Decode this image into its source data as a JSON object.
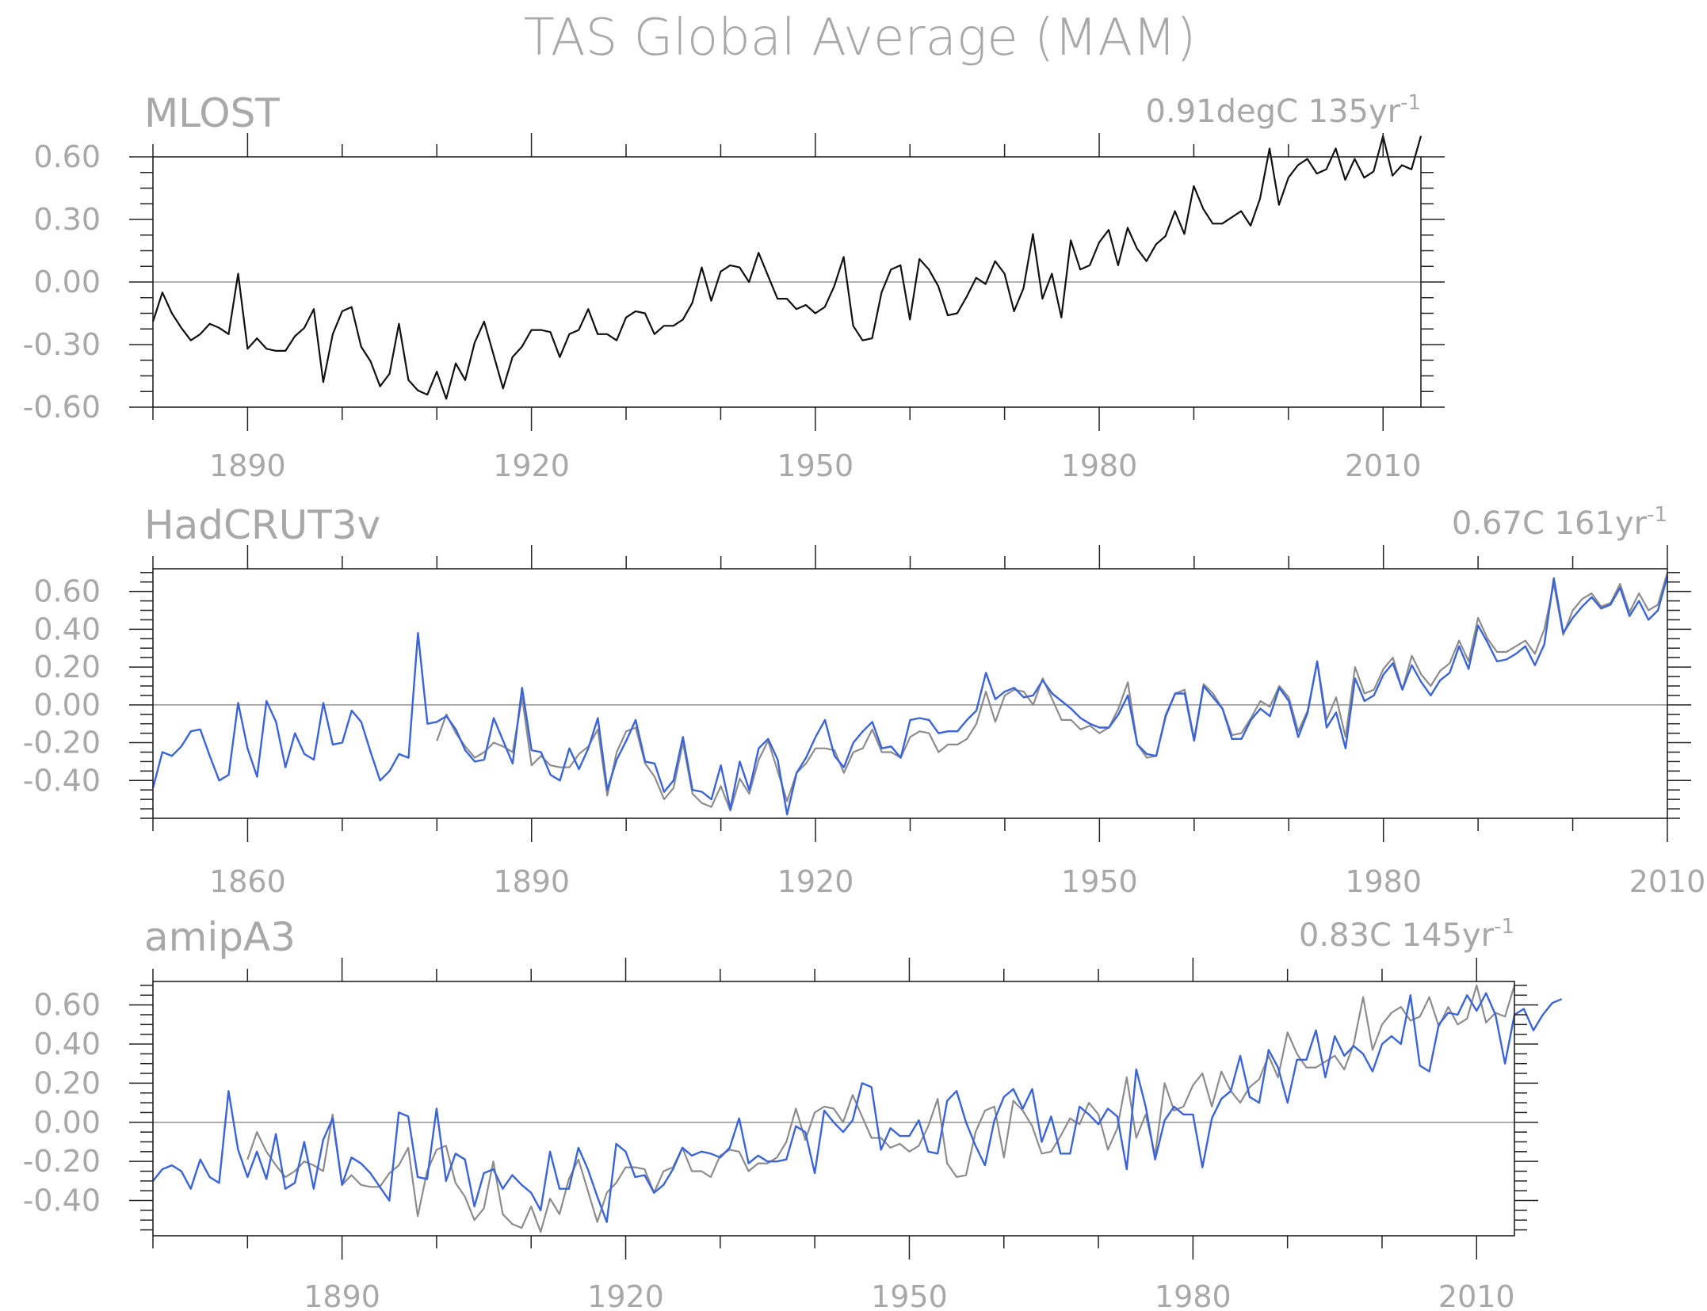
{
  "title": "TAS Global Average (MAM)",
  "colors": {
    "text": "#a8a8a8",
    "axis": "#222222",
    "zero_line": "#9a9a9a",
    "observed": "#111111",
    "reference": "#8c8c8c",
    "model": "#3a64d8"
  },
  "chart_data": [
    {
      "type": "line",
      "name": "MLOST",
      "title": "MLOST",
      "trend_value": "0.91degC",
      "trend_period": "135yr",
      "trend_exponent": "-1",
      "xlim": [
        1880,
        2014
      ],
      "ylim": [
        -0.6,
        0.6
      ],
      "xticks": [
        1890,
        1920,
        1950,
        1980,
        2010
      ],
      "yticks": [
        -0.6,
        -0.3,
        0.0,
        0.3,
        0.6
      ],
      "ytick_labels": [
        "-0.60",
        "-0.30",
        "0.00",
        "0.30",
        "0.60"
      ],
      "series": [
        {
          "role": "observed",
          "start_year": 1880,
          "values": [
            -0.19,
            -0.05,
            -0.15,
            -0.22,
            -0.28,
            -0.25,
            -0.2,
            -0.22,
            -0.25,
            0.04,
            -0.32,
            -0.27,
            -0.32,
            -0.33,
            -0.33,
            -0.26,
            -0.22,
            -0.13,
            -0.48,
            -0.25,
            -0.14,
            -0.12,
            -0.31,
            -0.38,
            -0.5,
            -0.44,
            -0.2,
            -0.47,
            -0.52,
            -0.54,
            -0.43,
            -0.56,
            -0.39,
            -0.47,
            -0.29,
            -0.19,
            -0.35,
            -0.51,
            -0.36,
            -0.31,
            -0.23,
            -0.23,
            -0.24,
            -0.36,
            -0.25,
            -0.23,
            -0.13,
            -0.25,
            -0.25,
            -0.28,
            -0.17,
            -0.14,
            -0.15,
            -0.25,
            -0.21,
            -0.21,
            -0.18,
            -0.1,
            0.07,
            -0.09,
            0.05,
            0.08,
            0.07,
            0.0,
            0.14,
            0.03,
            -0.08,
            -0.08,
            -0.13,
            -0.11,
            -0.15,
            -0.12,
            -0.02,
            0.12,
            -0.21,
            -0.28,
            -0.27,
            -0.05,
            0.06,
            0.08,
            -0.18,
            0.11,
            0.06,
            -0.02,
            -0.16,
            -0.15,
            -0.07,
            0.02,
            -0.01,
            0.1,
            0.04,
            -0.14,
            -0.03,
            0.23,
            -0.08,
            0.04,
            -0.17,
            0.2,
            0.06,
            0.08,
            0.19,
            0.25,
            0.08,
            0.26,
            0.16,
            0.1,
            0.18,
            0.22,
            0.34,
            0.23,
            0.46,
            0.35,
            0.28,
            0.28,
            0.31,
            0.34,
            0.27,
            0.4,
            0.64,
            0.37,
            0.5,
            0.56,
            0.59,
            0.52,
            0.54,
            0.64,
            0.49,
            0.59,
            0.5,
            0.53,
            0.7,
            0.51,
            0.56,
            0.54,
            0.7
          ]
        }
      ]
    },
    {
      "type": "line",
      "name": "HadCRUT3v",
      "title": "HadCRUT3v",
      "trend_value": "0.67C",
      "trend_period": "161yr",
      "trend_exponent": "-1",
      "xlim": [
        1850,
        2010
      ],
      "ylim": [
        -0.6,
        0.72
      ],
      "xticks": [
        1860,
        1890,
        1920,
        1950,
        1980,
        2010
      ],
      "yticks": [
        -0.4,
        -0.2,
        0.0,
        0.2,
        0.4,
        0.6
      ],
      "ytick_labels": [
        "-0.40",
        "-0.20",
        "0.00",
        "0.20",
        "0.40",
        "0.60"
      ],
      "series": [
        {
          "role": "reference",
          "start_year": 1880,
          "values": [
            -0.19,
            -0.05,
            -0.15,
            -0.22,
            -0.28,
            -0.25,
            -0.2,
            -0.22,
            -0.25,
            0.04,
            -0.32,
            -0.27,
            -0.32,
            -0.33,
            -0.33,
            -0.26,
            -0.22,
            -0.13,
            -0.48,
            -0.25,
            -0.14,
            -0.12,
            -0.31,
            -0.38,
            -0.5,
            -0.44,
            -0.2,
            -0.47,
            -0.52,
            -0.54,
            -0.43,
            -0.56,
            -0.39,
            -0.47,
            -0.29,
            -0.19,
            -0.35,
            -0.51,
            -0.36,
            -0.31,
            -0.23,
            -0.23,
            -0.24,
            -0.36,
            -0.25,
            -0.23,
            -0.13,
            -0.25,
            -0.25,
            -0.28,
            -0.17,
            -0.14,
            -0.15,
            -0.25,
            -0.21,
            -0.21,
            -0.18,
            -0.1,
            0.07,
            -0.09,
            0.05,
            0.08,
            0.07,
            0.0,
            0.14,
            0.03,
            -0.08,
            -0.08,
            -0.13,
            -0.11,
            -0.15,
            -0.12,
            -0.02,
            0.12,
            -0.21,
            -0.28,
            -0.27,
            -0.05,
            0.06,
            0.08,
            -0.18,
            0.11,
            0.06,
            -0.02,
            -0.16,
            -0.15,
            -0.07,
            0.02,
            -0.01,
            0.1,
            0.04,
            -0.14,
            -0.03,
            0.23,
            -0.08,
            0.04,
            -0.17,
            0.2,
            0.06,
            0.08,
            0.19,
            0.25,
            0.08,
            0.26,
            0.16,
            0.1,
            0.18,
            0.22,
            0.34,
            0.23,
            0.46,
            0.35,
            0.28,
            0.28,
            0.31,
            0.34,
            0.27,
            0.4,
            0.64,
            0.37,
            0.5,
            0.56,
            0.59,
            0.52,
            0.54,
            0.64,
            0.49,
            0.59,
            0.5,
            0.53,
            0.7
          ]
        },
        {
          "role": "observed-blue",
          "start_year": 1850,
          "values": [
            -0.44,
            -0.25,
            -0.27,
            -0.22,
            -0.14,
            -0.13,
            -0.27,
            -0.4,
            -0.37,
            0.01,
            -0.23,
            -0.38,
            0.02,
            -0.09,
            -0.33,
            -0.15,
            -0.26,
            -0.29,
            0.01,
            -0.21,
            -0.2,
            -0.03,
            -0.09,
            -0.25,
            -0.4,
            -0.35,
            -0.26,
            -0.28,
            0.38,
            -0.1,
            -0.09,
            -0.06,
            -0.13,
            -0.24,
            -0.3,
            -0.29,
            -0.07,
            -0.19,
            -0.31,
            0.09,
            -0.24,
            -0.25,
            -0.37,
            -0.4,
            -0.23,
            -0.34,
            -0.23,
            -0.07,
            -0.45,
            -0.29,
            -0.19,
            -0.08,
            -0.3,
            -0.31,
            -0.46,
            -0.4,
            -0.17,
            -0.45,
            -0.46,
            -0.5,
            -0.32,
            -0.55,
            -0.3,
            -0.45,
            -0.23,
            -0.18,
            -0.29,
            -0.58,
            -0.36,
            -0.28,
            -0.17,
            -0.08,
            -0.27,
            -0.33,
            -0.2,
            -0.14,
            -0.09,
            -0.23,
            -0.22,
            -0.28,
            -0.08,
            -0.07,
            -0.08,
            -0.15,
            -0.14,
            -0.14,
            -0.08,
            -0.03,
            0.17,
            0.03,
            0.07,
            0.09,
            0.04,
            0.05,
            0.13,
            0.06,
            0.02,
            -0.02,
            -0.07,
            -0.1,
            -0.12,
            -0.12,
            -0.05,
            0.05,
            -0.21,
            -0.26,
            -0.27,
            -0.06,
            0.06,
            0.06,
            -0.19,
            0.1,
            0.04,
            -0.02,
            -0.18,
            -0.18,
            -0.08,
            -0.02,
            -0.06,
            0.09,
            0.02,
            -0.17,
            -0.04,
            0.23,
            -0.12,
            -0.04,
            -0.23,
            0.14,
            0.02,
            0.05,
            0.16,
            0.22,
            0.08,
            0.21,
            0.12,
            0.05,
            0.13,
            0.17,
            0.31,
            0.19,
            0.42,
            0.33,
            0.23,
            0.24,
            0.27,
            0.31,
            0.21,
            0.32,
            0.67,
            0.38,
            0.46,
            0.52,
            0.57,
            0.51,
            0.53,
            0.62,
            0.47,
            0.55,
            0.45,
            0.5,
            0.68
          ]
        }
      ]
    },
    {
      "type": "line",
      "name": "amipA3",
      "title": "amipA3",
      "trend_value": "0.83C",
      "trend_period": "145yr",
      "trend_exponent": "-1",
      "xlim": [
        1870,
        2014
      ],
      "ylim": [
        -0.58,
        0.72
      ],
      "xticks": [
        1890,
        1920,
        1950,
        1980,
        2010
      ],
      "yticks": [
        -0.4,
        -0.2,
        0.0,
        0.2,
        0.4,
        0.6
      ],
      "ytick_labels": [
        "-0.40",
        "-0.20",
        "0.00",
        "0.20",
        "0.40",
        "0.60"
      ],
      "series": [
        {
          "role": "reference",
          "start_year": 1880,
          "values": [
            -0.19,
            -0.05,
            -0.15,
            -0.22,
            -0.28,
            -0.25,
            -0.2,
            -0.22,
            -0.25,
            0.04,
            -0.32,
            -0.27,
            -0.32,
            -0.33,
            -0.33,
            -0.26,
            -0.22,
            -0.13,
            -0.48,
            -0.25,
            -0.14,
            -0.12,
            -0.31,
            -0.38,
            -0.5,
            -0.44,
            -0.2,
            -0.47,
            -0.52,
            -0.54,
            -0.43,
            -0.56,
            -0.39,
            -0.47,
            -0.29,
            -0.19,
            -0.35,
            -0.51,
            -0.36,
            -0.31,
            -0.23,
            -0.23,
            -0.24,
            -0.36,
            -0.25,
            -0.23,
            -0.13,
            -0.25,
            -0.25,
            -0.28,
            -0.17,
            -0.14,
            -0.15,
            -0.25,
            -0.21,
            -0.21,
            -0.18,
            -0.1,
            0.07,
            -0.09,
            0.05,
            0.08,
            0.07,
            0.0,
            0.14,
            0.03,
            -0.08,
            -0.08,
            -0.13,
            -0.11,
            -0.15,
            -0.12,
            -0.02,
            0.12,
            -0.21,
            -0.28,
            -0.27,
            -0.05,
            0.06,
            0.08,
            -0.18,
            0.11,
            0.06,
            -0.02,
            -0.16,
            -0.15,
            -0.07,
            0.02,
            -0.01,
            0.1,
            0.04,
            -0.14,
            -0.03,
            0.23,
            -0.08,
            0.04,
            -0.17,
            0.2,
            0.06,
            0.08,
            0.19,
            0.25,
            0.08,
            0.26,
            0.16,
            0.1,
            0.18,
            0.22,
            0.34,
            0.23,
            0.46,
            0.35,
            0.28,
            0.28,
            0.31,
            0.34,
            0.27,
            0.4,
            0.64,
            0.37,
            0.5,
            0.56,
            0.59,
            0.52,
            0.54,
            0.64,
            0.49,
            0.59,
            0.5,
            0.53,
            0.7,
            0.51,
            0.56,
            0.54,
            0.7
          ]
        },
        {
          "role": "model",
          "start_year": 1870,
          "values": [
            -0.3,
            -0.24,
            -0.22,
            -0.25,
            -0.34,
            -0.19,
            -0.28,
            -0.31,
            0.16,
            -0.14,
            -0.28,
            -0.15,
            -0.29,
            -0.06,
            -0.34,
            -0.31,
            -0.1,
            -0.34,
            -0.09,
            0.02,
            -0.32,
            -0.18,
            -0.21,
            -0.26,
            -0.33,
            -0.4,
            0.05,
            0.03,
            -0.28,
            -0.29,
            0.07,
            -0.3,
            -0.16,
            -0.19,
            -0.43,
            -0.26,
            -0.24,
            -0.34,
            -0.27,
            -0.32,
            -0.36,
            -0.45,
            -0.15,
            -0.34,
            -0.34,
            -0.13,
            -0.24,
            -0.38,
            -0.51,
            -0.11,
            -0.15,
            -0.28,
            -0.27,
            -0.36,
            -0.32,
            -0.24,
            -0.13,
            -0.17,
            -0.15,
            -0.16,
            -0.18,
            -0.13,
            0.02,
            -0.21,
            -0.17,
            -0.2,
            -0.2,
            -0.19,
            -0.02,
            -0.05,
            -0.26,
            0.06,
            0.0,
            -0.05,
            0.01,
            0.2,
            0.18,
            -0.14,
            -0.03,
            -0.07,
            -0.07,
            0.01,
            -0.15,
            -0.16,
            0.11,
            0.16,
            0.0,
            -0.12,
            -0.22,
            0.01,
            0.13,
            0.17,
            0.07,
            0.17,
            -0.1,
            0.03,
            -0.16,
            -0.16,
            0.08,
            0.04,
            -0.01,
            0.07,
            0.03,
            -0.24,
            0.27,
            0.08,
            -0.19,
            0.01,
            0.08,
            0.04,
            0.04,
            -0.23,
            0.02,
            0.12,
            0.16,
            0.34,
            0.13,
            0.1,
            0.37,
            0.28,
            0.1,
            0.32,
            0.32,
            0.47,
            0.23,
            0.44,
            0.34,
            0.39,
            0.35,
            0.26,
            0.4,
            0.44,
            0.4,
            0.65,
            0.29,
            0.26,
            0.5,
            0.56,
            0.55,
            0.65,
            0.57,
            0.66,
            0.55,
            0.3,
            0.55,
            0.58,
            0.47,
            0.55,
            0.61,
            0.63
          ]
        }
      ]
    }
  ]
}
